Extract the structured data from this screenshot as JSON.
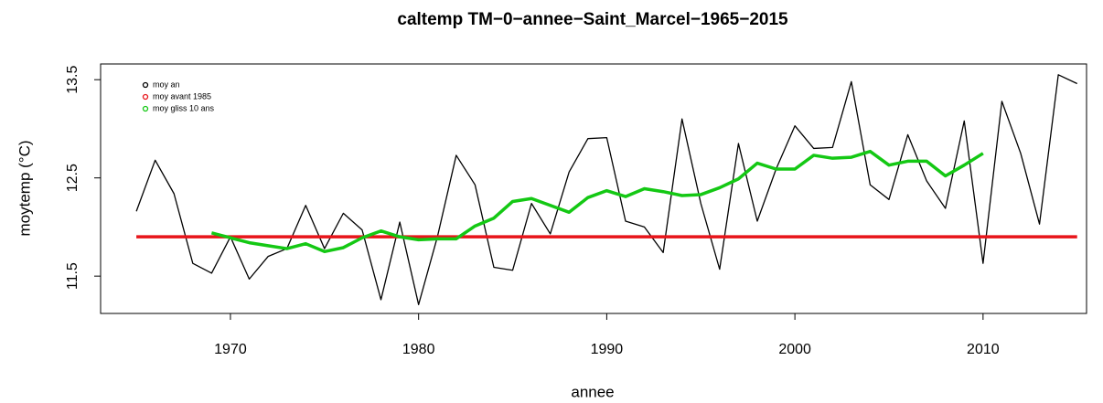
{
  "chart_data": {
    "type": "line",
    "title": "caltemp TM−0−annee−Saint_Marcel−1965−2015",
    "x_label": "annee",
    "y_label": "moytemp (°C)",
    "xlim": [
      1963.1,
      2015.5
    ],
    "xticks": [
      1970,
      1980,
      1990,
      2000,
      2010
    ],
    "ylim": [
      11.12,
      13.66
    ],
    "yticks": [
      11.5,
      12.5,
      13.5
    ],
    "legend": "top-left",
    "series": [
      {
        "name": "moy an",
        "color": "#000000",
        "width": 1.3,
        "x": [
          1965,
          1966,
          1967,
          1968,
          1969,
          1970,
          1971,
          1972,
          1973,
          1974,
          1975,
          1976,
          1977,
          1978,
          1979,
          1980,
          1981,
          1982,
          1983,
          1984,
          1985,
          1986,
          1987,
          1988,
          1989,
          1990,
          1991,
          1992,
          1993,
          1994,
          1995,
          1996,
          1997,
          1998,
          1999,
          2000,
          2001,
          2002,
          2003,
          2004,
          2005,
          2006,
          2007,
          2008,
          2009,
          2010,
          2011,
          2012,
          2013,
          2014,
          2015
        ],
        "values": [
          12.16,
          12.68,
          12.34,
          11.63,
          11.53,
          11.9,
          11.47,
          11.7,
          11.78,
          12.22,
          11.78,
          12.14,
          11.97,
          11.26,
          12.05,
          11.21,
          11.9,
          12.73,
          12.43,
          11.59,
          11.56,
          12.24,
          11.93,
          12.56,
          12.9,
          12.91,
          12.06,
          12.0,
          11.74,
          13.1,
          12.24,
          11.57,
          12.85,
          12.06,
          12.59,
          13.03,
          12.8,
          12.81,
          13.48,
          12.43,
          12.28,
          12.94,
          12.47,
          12.19,
          13.08,
          11.63,
          13.28,
          12.75,
          12.03,
          13.55,
          13.46
        ]
      },
      {
        "name": "moy avant 1985",
        "color": "#e8141a",
        "width": 3.5,
        "x": [
          1965,
          2015
        ],
        "values": [
          11.9,
          11.9
        ]
      },
      {
        "name": "moy gliss 10 ans",
        "color": "#14c814",
        "width": 3.5,
        "x": [
          1969,
          1970,
          1971,
          1972,
          1973,
          1974,
          1975,
          1976,
          1977,
          1978,
          1979,
          1980,
          1981,
          1982,
          1983,
          1984,
          1985,
          1986,
          1987,
          1988,
          1989,
          1990,
          1991,
          1992,
          1993,
          1994,
          1995,
          1996,
          1997,
          1998,
          1999,
          2000,
          2001,
          2002,
          2003,
          2004,
          2005,
          2006,
          2007,
          2008,
          2009,
          2010
        ],
        "values": [
          11.94,
          11.89,
          11.84,
          11.81,
          11.78,
          11.83,
          11.75,
          11.79,
          11.89,
          11.96,
          11.9,
          11.87,
          11.88,
          11.88,
          12.01,
          12.09,
          12.26,
          12.29,
          12.22,
          12.15,
          12.3,
          12.37,
          12.31,
          12.39,
          12.36,
          12.32,
          12.33,
          12.4,
          12.49,
          12.65,
          12.59,
          12.59,
          12.73,
          12.7,
          12.71,
          12.77,
          12.63,
          12.67,
          12.67,
          12.52,
          12.63,
          12.75
        ]
      }
    ]
  }
}
